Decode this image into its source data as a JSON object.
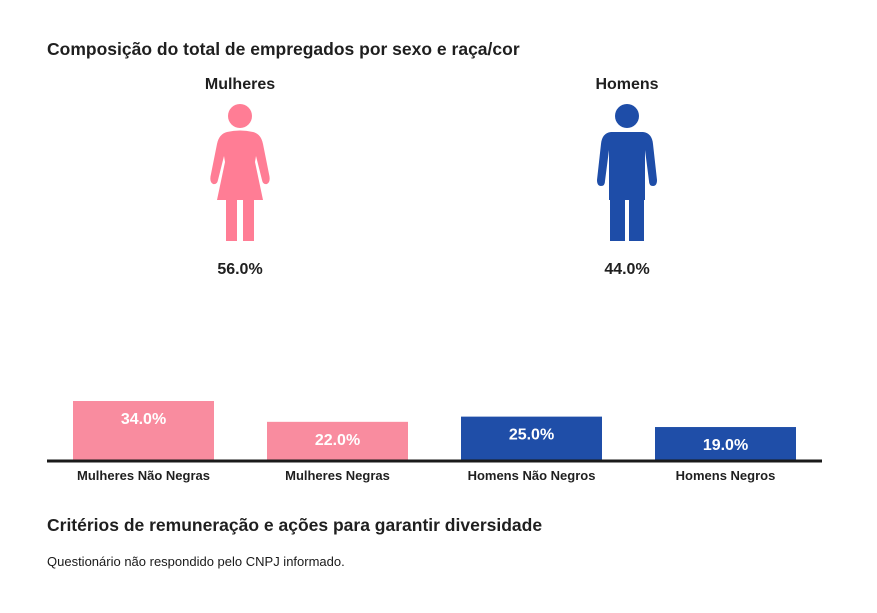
{
  "sections": {
    "composition_title": "Composição do total de empregados por sexo e raça/cor",
    "criteria_title": "Critérios de remuneração e ações para garantir diversidade",
    "criteria_note": "Questionário não respondido pelo CNPJ informado."
  },
  "gender": [
    {
      "label": "Mulheres",
      "percent": "56.0%",
      "icon": "female-figure-icon",
      "color": "#FF7D95"
    },
    {
      "label": "Homens",
      "percent": "44.0%",
      "icon": "male-figure-icon",
      "color": "#1E4DA8"
    }
  ],
  "colors": {
    "women_bar": "#F98C9F",
    "men_bar": "#1F4EA8",
    "axis": "#1a1a1a",
    "bar_label": "#ffffff"
  },
  "chart_data": {
    "type": "bar",
    "title": "Composição do total de empregados por sexo e raça/cor",
    "xlabel": "",
    "ylabel": "",
    "categories": [
      "Mulheres Não Negras",
      "Mulheres Negras",
      "Homens Não Negros",
      "Homens Negros"
    ],
    "values": [
      34.0,
      22.0,
      25.0,
      19.0
    ],
    "value_labels": [
      "34.0%",
      "22.0%",
      "25.0%",
      "19.0%"
    ],
    "bar_groups": [
      "women",
      "women",
      "men",
      "men"
    ],
    "ylim": [
      0,
      34
    ],
    "grid": false,
    "legend": "none",
    "units": "%"
  }
}
